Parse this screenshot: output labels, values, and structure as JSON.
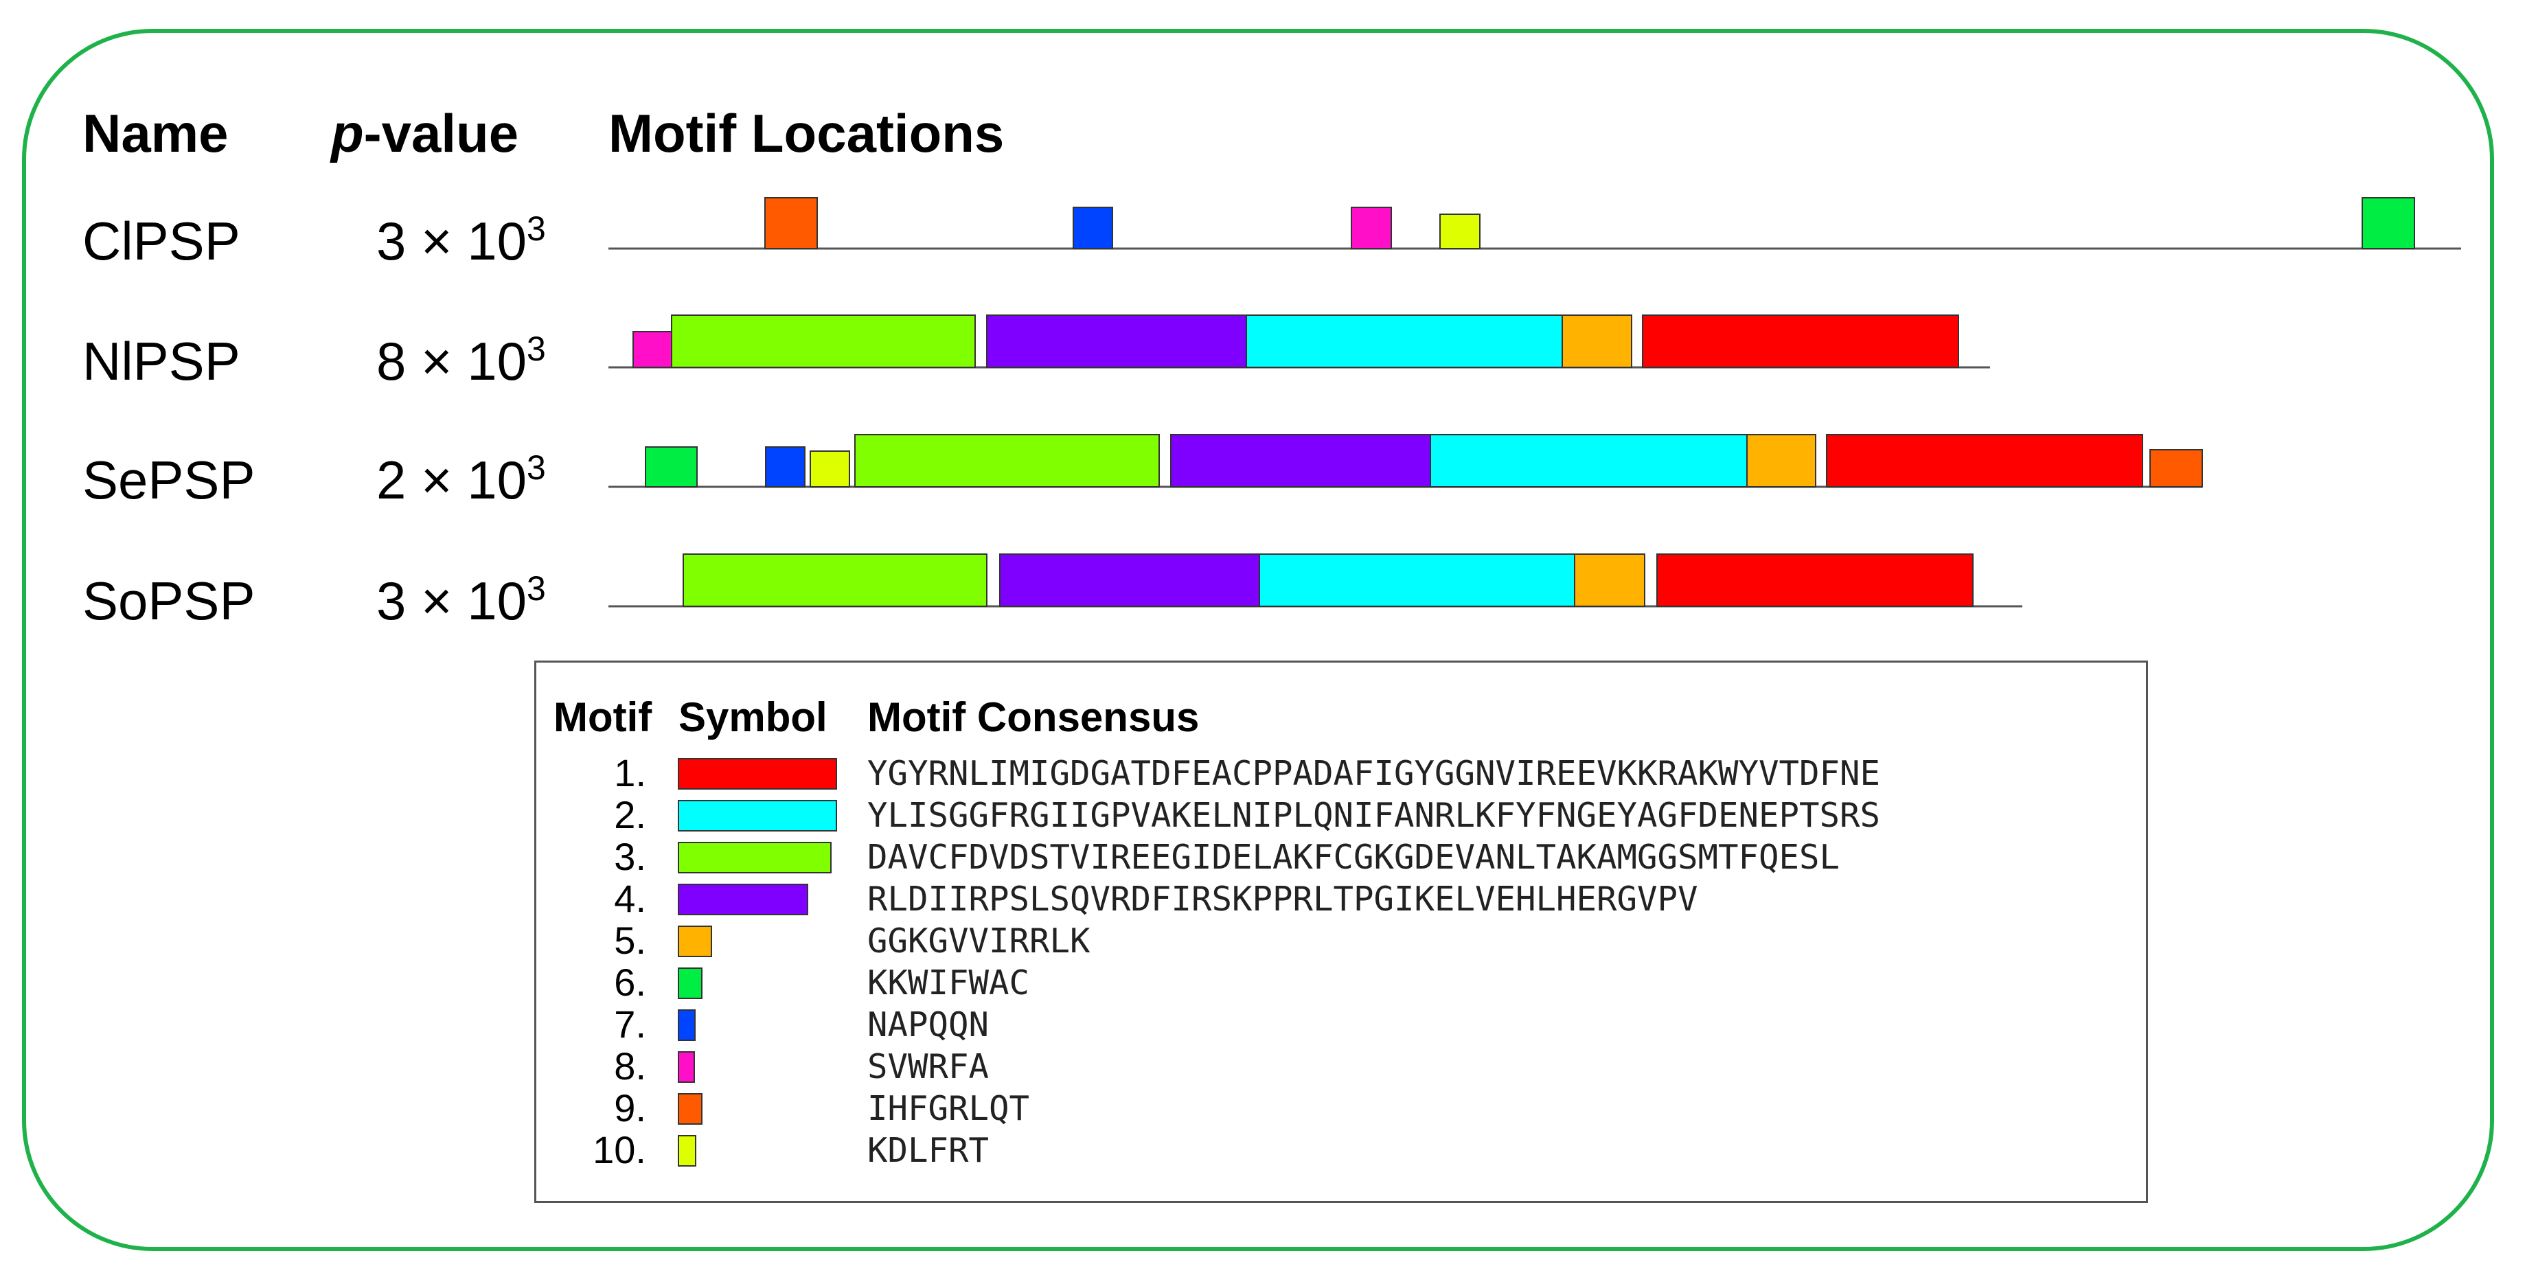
{
  "headers": {
    "name": "Name",
    "p_italic": "p",
    "p_rest": "-value",
    "locations": "Motif Locations"
  },
  "sequences": [
    {
      "name": "ClPSP",
      "p_mantissa": "3 × 10",
      "p_exp": "3"
    },
    {
      "name": "NlPSP",
      "p_mantissa": "8 × 10",
      "p_exp": "3"
    },
    {
      "name": "SePSP",
      "p_mantissa": "2 × 10",
      "p_exp": "3"
    },
    {
      "name": "SoPSP",
      "p_mantissa": "3 × 10",
      "p_exp": "3"
    }
  ],
  "legend": {
    "col_motif": "Motif",
    "col_symbol": "Symbol",
    "col_consensus": "Motif Consensus",
    "motifs": [
      {
        "num": "1.",
        "color": "#ff0000",
        "consensus": "YGYRNLIMIGDGATDFEACPPADAFIGYGGNVIREEVKKRAKWYVTDFNE"
      },
      {
        "num": "2.",
        "color": "#00ffff",
        "consensus": "YLISGGFRGIIGPVAKELNIPLQNIFANRLKFYFNGEYAGFDENEPTSRS"
      },
      {
        "num": "3.",
        "color": "#80ff00",
        "consensus": "DAVCFDVDSTVIREEGIDELAKFCGKGDEVANLTAKAMGGSMTFQESL"
      },
      {
        "num": "4.",
        "color": "#8000ff",
        "consensus": "RLDIIRPSLSQVRDFIRSKPPRLTPGIKELVEHLHERGVPV"
      },
      {
        "num": "5.",
        "color": "#ffb300",
        "consensus": "GGKGVVIRRLK"
      },
      {
        "num": "6.",
        "color": "#00ee44",
        "consensus": "KKWIFWAC"
      },
      {
        "num": "7.",
        "color": "#0044ff",
        "consensus": "NAPQQN"
      },
      {
        "num": "8.",
        "color": "#ff10c8",
        "consensus": "SVWRFA"
      },
      {
        "num": "9.",
        "color": "#ff5a00",
        "consensus": "IHFGRLQT"
      },
      {
        "num": "10.",
        "color": "#ddff00",
        "consensus": "KDLFRT"
      }
    ]
  },
  "chart_data": {
    "type": "motif-map",
    "tracks": [
      {
        "sequence": "ClPSP",
        "hits": [
          9,
          7,
          8,
          10,
          6
        ]
      },
      {
        "sequence": "NlPSP",
        "hits": [
          8,
          3,
          4,
          2,
          5,
          1
        ]
      },
      {
        "sequence": "SePSP",
        "hits": [
          6,
          7,
          10,
          3,
          4,
          2,
          5,
          1,
          9
        ]
      },
      {
        "sequence": "SoPSP",
        "hits": [
          3,
          4,
          2,
          5,
          1
        ]
      }
    ]
  }
}
